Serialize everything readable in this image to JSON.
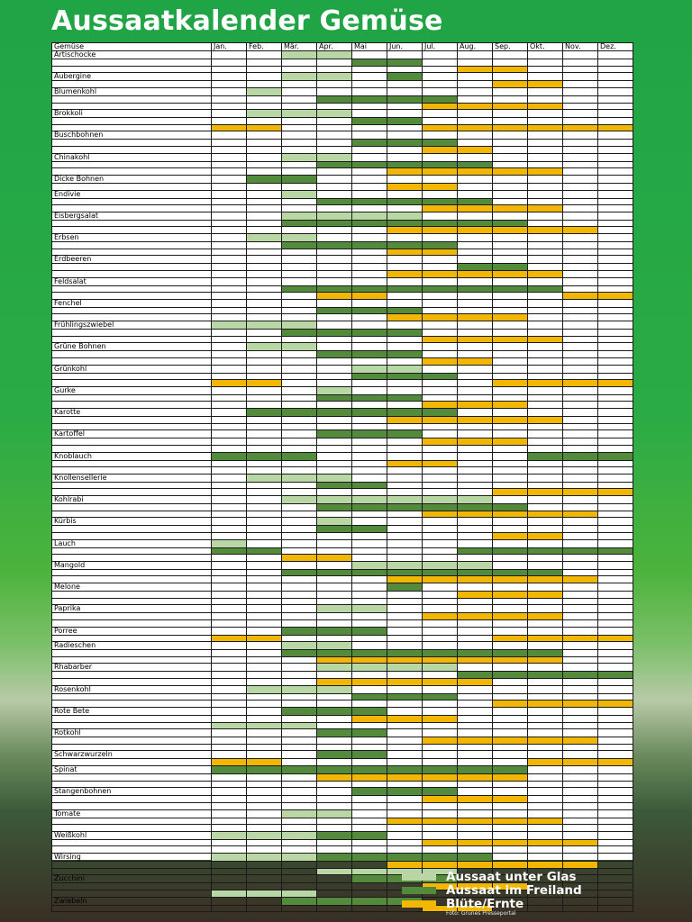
{
  "title": "Aussaatkalender Gemüse",
  "header": {
    "first_col": "Gemüse",
    "months": [
      "Jan.",
      "Feb.",
      "Mär.",
      "Apr.",
      "Mai",
      "Jun.",
      "Jul.",
      "Aug.",
      "Sep.",
      "Okt.",
      "Nov.",
      "Dez."
    ]
  },
  "colors": {
    "glas": "#b9d7a5",
    "freiland": "#548a3b",
    "ernte": "#f2b705"
  },
  "legend": [
    {
      "key": "G",
      "label": "Aussaat unter Glas"
    },
    {
      "key": "F",
      "label": "Aussaat im Freiland"
    },
    {
      "key": "E",
      "label": "Blüte/Ernte"
    }
  ],
  "credit": "Foto: Grünes Presseportal",
  "rows": [
    {
      "name": "Artischocke",
      "cells": "..GG........"
    },
    {
      "name": "",
      "cells": "....FF......"
    },
    {
      "name": "",
      "cells": ".......EE..."
    },
    {
      "name": "Aubergine",
      "cells": "..GG.F......"
    },
    {
      "name": "",
      "cells": "........EE.."
    },
    {
      "name": "Blumenkohl",
      "cells": ".G.........."
    },
    {
      "name": "",
      "cells": "...FFFF....."
    },
    {
      "name": "",
      "cells": "......EEEE.."
    },
    {
      "name": "Brokkoli",
      "cells": ".GGG........"
    },
    {
      "name": "",
      "cells": "....FF......"
    },
    {
      "name": "",
      "cells": "EE....EEEEEE"
    },
    {
      "name": "Buschbohnen",
      "cells": "............"
    },
    {
      "name": "",
      "cells": "....FFF....."
    },
    {
      "name": "",
      "cells": "......EE...."
    },
    {
      "name": "Chinakohl",
      "cells": "..GG........"
    },
    {
      "name": "",
      "cells": "...FFFFF...."
    },
    {
      "name": "",
      "cells": ".....EEEEE.."
    },
    {
      "name": "Dicke Bohnen",
      "cells": ".FF........."
    },
    {
      "name": "",
      "cells": ".....EE....."
    },
    {
      "name": "Endivie",
      "cells": "..G........."
    },
    {
      "name": "",
      "cells": "...FFFFF...."
    },
    {
      "name": "",
      "cells": "......EEEE.."
    },
    {
      "name": "Eisbergsalat",
      "cells": "..GGGG......"
    },
    {
      "name": "",
      "cells": "..FFFFFFF..."
    },
    {
      "name": "",
      "cells": ".....EEEEEE."
    },
    {
      "name": "Erbsen",
      "cells": ".GG........."
    },
    {
      "name": "",
      "cells": "..FFFFF....."
    },
    {
      "name": "",
      "cells": ".....EE....."
    },
    {
      "name": "Erdbeeren",
      "cells": "............"
    },
    {
      "name": "",
      "cells": ".......FF..."
    },
    {
      "name": "",
      "cells": ".....EEEEE.."
    },
    {
      "name": "Feldsalat",
      "cells": "............"
    },
    {
      "name": "",
      "cells": "..FFFFFFFF.."
    },
    {
      "name": "",
      "cells": "...EE.....EE"
    },
    {
      "name": "Fenchel",
      "cells": "............"
    },
    {
      "name": "",
      "cells": "...FFF......"
    },
    {
      "name": "",
      "cells": ".....EEEE..."
    },
    {
      "name": "Frühlingszwiebel",
      "cells": "GGG........."
    },
    {
      "name": "",
      "cells": "..FFFF......"
    },
    {
      "name": "",
      "cells": "......EEEE.."
    },
    {
      "name": "Grüne Bohnen",
      "cells": ".GG........."
    },
    {
      "name": "",
      "cells": "...FFF......"
    },
    {
      "name": "",
      "cells": "......EE...."
    },
    {
      "name": "Grünkohl",
      "cells": "....GG......"
    },
    {
      "name": "",
      "cells": "....FFF....."
    },
    {
      "name": "",
      "cells": "EE......EEEE"
    },
    {
      "name": "Gurke",
      "cells": "...G........"
    },
    {
      "name": "",
      "cells": "...FFF......"
    },
    {
      "name": "",
      "cells": "......EEE..."
    },
    {
      "name": "Karotte",
      "cells": ".FFFFFF....."
    },
    {
      "name": "",
      "cells": ".....EEEEE.."
    },
    {
      "name": "",
      "cells": "............"
    },
    {
      "name": "Kartoffel",
      "cells": "...FFF......"
    },
    {
      "name": "",
      "cells": "......EEE..."
    },
    {
      "name": "",
      "cells": "............"
    },
    {
      "name": "Knoblauch",
      "cells": "FFF......FFF"
    },
    {
      "name": "",
      "cells": ".....EE....."
    },
    {
      "name": "",
      "cells": "............"
    },
    {
      "name": "Knollensellerie",
      "cells": ".GGG........"
    },
    {
      "name": "",
      "cells": "...FF......."
    },
    {
      "name": "",
      "cells": "........EEEE"
    },
    {
      "name": "Kohlrabi",
      "cells": "..GGGGGG...."
    },
    {
      "name": "",
      "cells": "...FFFFFF..."
    },
    {
      "name": "",
      "cells": "......EEEEE."
    },
    {
      "name": "Kürbis",
      "cells": "...G........"
    },
    {
      "name": "",
      "cells": "...FF......."
    },
    {
      "name": "",
      "cells": "........EE.."
    },
    {
      "name": "Lauch",
      "cells": "G..........."
    },
    {
      "name": "",
      "cells": "FF.....FFFFF"
    },
    {
      "name": "",
      "cells": "..EE........"
    },
    {
      "name": "Mangold",
      "cells": "....GGGG...."
    },
    {
      "name": "",
      "cells": "..FFFFFFFF.."
    },
    {
      "name": "",
      "cells": ".....EEEEEE."
    },
    {
      "name": "Melone",
      "cells": ".....F......"
    },
    {
      "name": "",
      "cells": ".......EEE.."
    },
    {
      "name": "",
      "cells": "............"
    },
    {
      "name": "Paprika",
      "cells": "...GG......."
    },
    {
      "name": "",
      "cells": "......EEEE.."
    },
    {
      "name": "",
      "cells": "............"
    },
    {
      "name": "Porree",
      "cells": "..FFF......."
    },
    {
      "name": "",
      "cells": "EE......EEEE"
    },
    {
      "name": "Radieschen",
      "cells": "..GG........"
    },
    {
      "name": "",
      "cells": "..FFFFFFFF.."
    },
    {
      "name": "",
      "cells": "...EEEEEEE.."
    },
    {
      "name": "Rhabarber",
      "cells": "...GGGG....."
    },
    {
      "name": "",
      "cells": ".......FFFFF"
    },
    {
      "name": "",
      "cells": "...EEEEE...."
    },
    {
      "name": "Rosenkohl",
      "cells": ".GGG........"
    },
    {
      "name": "",
      "cells": "....FFF....."
    },
    {
      "name": "",
      "cells": "........EEEE"
    },
    {
      "name": "Rote Bete",
      "cells": "..FFF......."
    },
    {
      "name": "",
      "cells": "....EEE....."
    },
    {
      "name": "",
      "cells": "GGG........."
    },
    {
      "name": "Rotkohl",
      "cells": "...FF......."
    },
    {
      "name": "",
      "cells": "......EEEEE."
    },
    {
      "name": "",
      "cells": "............"
    },
    {
      "name": "Schwarzwurzeln",
      "cells": "...FF......."
    },
    {
      "name": "",
      "cells": "EE.......EEE"
    },
    {
      "name": "Spinat",
      "cells": "FFFFFFFFF..."
    },
    {
      "name": "",
      "cells": "...EEEEEE..."
    },
    {
      "name": "",
      "cells": "............"
    },
    {
      "name": "Stangenbohnen",
      "cells": "....FFF....."
    },
    {
      "name": "",
      "cells": "......EEE..."
    },
    {
      "name": "",
      "cells": "............"
    },
    {
      "name": "Tomate",
      "cells": "..GG........"
    },
    {
      "name": "",
      "cells": ".....EEEEE.."
    },
    {
      "name": "",
      "cells": "............"
    },
    {
      "name": "Weißkohl",
      "cells": "GGGFF......."
    },
    {
      "name": "",
      "cells": "......EEEEE."
    },
    {
      "name": "",
      "cells": "............"
    },
    {
      "name": "Wirsing",
      "cells": "GGGFFFFF...."
    },
    {
      "name": "",
      "cells": ".....EEEEEE."
    },
    {
      "name": "",
      "cells": "...GGGG....."
    },
    {
      "name": "Zucchini",
      "cells": "....FFF....."
    },
    {
      "name": "",
      "cells": "......EEE..."
    },
    {
      "name": "",
      "cells": "GGG........."
    },
    {
      "name": "Zwiebeln",
      "cells": "..FFFF......"
    },
    {
      "name": "",
      "cells": "......EE...."
    }
  ]
}
